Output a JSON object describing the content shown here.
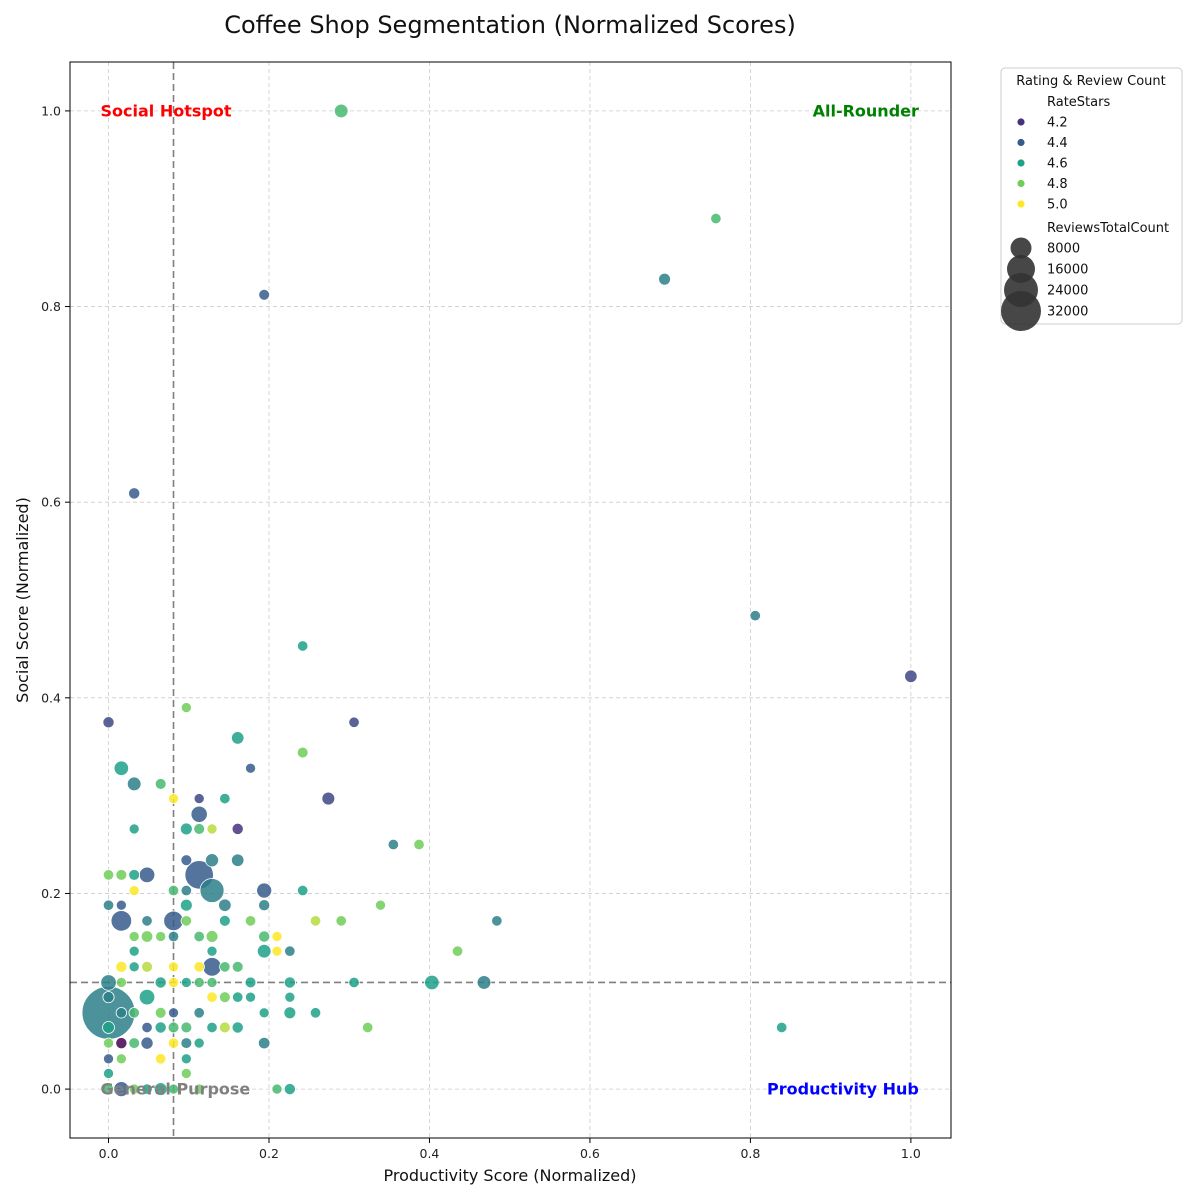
{
  "chart_data": {
    "type": "scatter",
    "title": "Coffee Shop Segmentation (Normalized Scores)",
    "xlabel": "Productivity Score (Normalized)",
    "ylabel": "Social Score (Normalized)",
    "xlim": [
      -0.048,
      1.05
    ],
    "ylim": [
      -0.05,
      1.05
    ],
    "xticks": [
      0.0,
      0.2,
      0.4,
      0.6,
      0.8,
      1.0
    ],
    "yticks": [
      0.0,
      0.2,
      0.4,
      0.6,
      0.8,
      1.0
    ],
    "xtick_labels": [
      "0.0",
      "0.2",
      "0.4",
      "0.6",
      "0.8",
      "1.0"
    ],
    "ytick_labels": [
      "0.0",
      "0.2",
      "0.4",
      "0.6",
      "0.8",
      "1.0"
    ],
    "grid": true,
    "thresholds": {
      "x": 0.081,
      "y": 0.109
    },
    "quadrant_labels": [
      {
        "text": "Social Hotspot",
        "position": "top-left",
        "color": "#ff0000"
      },
      {
        "text": "All-Rounder",
        "position": "top-right",
        "color": "#008000"
      },
      {
        "text": "General Purpose",
        "position": "bottom-left",
        "color": "#808080"
      },
      {
        "text": "Productivity Hub",
        "position": "bottom-right",
        "color": "#0000ff"
      }
    ],
    "legend": {
      "title": "Rating & Review Count",
      "position": "outside-top-right",
      "hue_title": "RateStars",
      "hue_entries": [
        {
          "label": "4.2",
          "color": "#46327e"
        },
        {
          "label": "4.4",
          "color": "#365c8d"
        },
        {
          "label": "4.6",
          "color": "#1fa187"
        },
        {
          "label": "4.8",
          "color": "#6ece58"
        },
        {
          "label": "5.0",
          "color": "#fde725"
        }
      ],
      "size_title": "ReviewsTotalCount",
      "size_entries": [
        "8000",
        "16000",
        "24000",
        "32000"
      ]
    },
    "points": [
      {
        "x": 0.29,
        "y": 1.0,
        "rating": 4.7,
        "reviews": 1500
      },
      {
        "x": 0.757,
        "y": 0.89,
        "rating": 4.7,
        "reviews": 500
      },
      {
        "x": 0.693,
        "y": 0.828,
        "rating": 4.5,
        "reviews": 900
      },
      {
        "x": 0.194,
        "y": 0.812,
        "rating": 4.4,
        "reviews": 600
      },
      {
        "x": 0.032,
        "y": 0.609,
        "rating": 4.4,
        "reviews": 700
      },
      {
        "x": 0.806,
        "y": 0.484,
        "rating": 4.5,
        "reviews": 500
      },
      {
        "x": 1.0,
        "y": 0.422,
        "rating": 4.3,
        "reviews": 1100
      },
      {
        "x": 0.242,
        "y": 0.453,
        "rating": 4.6,
        "reviews": 500
      },
      {
        "x": 0.097,
        "y": 0.39,
        "rating": 4.8,
        "reviews": 400
      },
      {
        "x": 0.0,
        "y": 0.375,
        "rating": 4.3,
        "reviews": 700
      },
      {
        "x": 0.306,
        "y": 0.375,
        "rating": 4.3,
        "reviews": 500
      },
      {
        "x": 0.161,
        "y": 0.359,
        "rating": 4.6,
        "reviews": 1100
      },
      {
        "x": 0.242,
        "y": 0.344,
        "rating": 4.8,
        "reviews": 600
      },
      {
        "x": 0.016,
        "y": 0.328,
        "rating": 4.6,
        "reviews": 1800
      },
      {
        "x": 0.177,
        "y": 0.328,
        "rating": 4.4,
        "reviews": 400
      },
      {
        "x": 0.032,
        "y": 0.312,
        "rating": 4.5,
        "reviews": 1500
      },
      {
        "x": 0.065,
        "y": 0.312,
        "rating": 4.7,
        "reviews": 600
      },
      {
        "x": 0.081,
        "y": 0.297,
        "rating": 5.0,
        "reviews": 400
      },
      {
        "x": 0.113,
        "y": 0.297,
        "rating": 4.3,
        "reviews": 400
      },
      {
        "x": 0.145,
        "y": 0.297,
        "rating": 4.6,
        "reviews": 500
      },
      {
        "x": 0.274,
        "y": 0.297,
        "rating": 4.3,
        "reviews": 1200
      },
      {
        "x": 0.113,
        "y": 0.281,
        "rating": 4.4,
        "reviews": 2500
      },
      {
        "x": 0.032,
        "y": 0.266,
        "rating": 4.6,
        "reviews": 400
      },
      {
        "x": 0.097,
        "y": 0.266,
        "rating": 4.6,
        "reviews": 900
      },
      {
        "x": 0.113,
        "y": 0.266,
        "rating": 4.7,
        "reviews": 600
      },
      {
        "x": 0.129,
        "y": 0.266,
        "rating": 4.9,
        "reviews": 400
      },
      {
        "x": 0.161,
        "y": 0.266,
        "rating": 4.2,
        "reviews": 700
      },
      {
        "x": 0.355,
        "y": 0.25,
        "rating": 4.5,
        "reviews": 500
      },
      {
        "x": 0.387,
        "y": 0.25,
        "rating": 4.8,
        "reviews": 500
      },
      {
        "x": 0.097,
        "y": 0.234,
        "rating": 4.4,
        "reviews": 600
      },
      {
        "x": 0.129,
        "y": 0.234,
        "rating": 4.5,
        "reviews": 1300
      },
      {
        "x": 0.161,
        "y": 0.234,
        "rating": 4.5,
        "reviews": 1100
      },
      {
        "x": 0.0,
        "y": 0.219,
        "rating": 4.8,
        "reviews": 500
      },
      {
        "x": 0.016,
        "y": 0.219,
        "rating": 4.8,
        "reviews": 600
      },
      {
        "x": 0.032,
        "y": 0.219,
        "rating": 4.6,
        "reviews": 600
      },
      {
        "x": 0.048,
        "y": 0.219,
        "rating": 4.4,
        "reviews": 2200
      },
      {
        "x": 0.113,
        "y": 0.219,
        "rating": 4.4,
        "reviews": 9500
      },
      {
        "x": 0.129,
        "y": 0.203,
        "rating": 4.5,
        "reviews": 6500
      },
      {
        "x": 0.081,
        "y": 0.203,
        "rating": 4.7,
        "reviews": 500
      },
      {
        "x": 0.097,
        "y": 0.203,
        "rating": 4.5,
        "reviews": 500
      },
      {
        "x": 0.194,
        "y": 0.203,
        "rating": 4.4,
        "reviews": 2000
      },
      {
        "x": 0.242,
        "y": 0.203,
        "rating": 4.6,
        "reviews": 500
      },
      {
        "x": 0.032,
        "y": 0.203,
        "rating": 5.0,
        "reviews": 400
      },
      {
        "x": 0.0,
        "y": 0.188,
        "rating": 4.5,
        "reviews": 500
      },
      {
        "x": 0.016,
        "y": 0.188,
        "rating": 4.4,
        "reviews": 400
      },
      {
        "x": 0.097,
        "y": 0.188,
        "rating": 4.6,
        "reviews": 900
      },
      {
        "x": 0.145,
        "y": 0.188,
        "rating": 4.5,
        "reviews": 1100
      },
      {
        "x": 0.194,
        "y": 0.188,
        "rating": 4.5,
        "reviews": 700
      },
      {
        "x": 0.339,
        "y": 0.188,
        "rating": 4.8,
        "reviews": 400
      },
      {
        "x": 0.016,
        "y": 0.172,
        "rating": 4.4,
        "reviews": 4500
      },
      {
        "x": 0.048,
        "y": 0.172,
        "rating": 4.5,
        "reviews": 500
      },
      {
        "x": 0.081,
        "y": 0.172,
        "rating": 4.4,
        "reviews": 4000
      },
      {
        "x": 0.097,
        "y": 0.172,
        "rating": 4.8,
        "reviews": 500
      },
      {
        "x": 0.145,
        "y": 0.172,
        "rating": 4.6,
        "reviews": 600
      },
      {
        "x": 0.177,
        "y": 0.172,
        "rating": 4.8,
        "reviews": 500
      },
      {
        "x": 0.258,
        "y": 0.172,
        "rating": 4.9,
        "reviews": 500
      },
      {
        "x": 0.29,
        "y": 0.172,
        "rating": 4.8,
        "reviews": 500
      },
      {
        "x": 0.484,
        "y": 0.172,
        "rating": 4.5,
        "reviews": 500
      },
      {
        "x": 0.032,
        "y": 0.156,
        "rating": 4.8,
        "reviews": 400
      },
      {
        "x": 0.048,
        "y": 0.156,
        "rating": 4.8,
        "reviews": 800
      },
      {
        "x": 0.065,
        "y": 0.156,
        "rating": 4.8,
        "reviews": 400
      },
      {
        "x": 0.081,
        "y": 0.156,
        "rating": 4.5,
        "reviews": 500
      },
      {
        "x": 0.113,
        "y": 0.156,
        "rating": 4.7,
        "reviews": 500
      },
      {
        "x": 0.129,
        "y": 0.156,
        "rating": 4.8,
        "reviews": 900
      },
      {
        "x": 0.194,
        "y": 0.156,
        "rating": 4.7,
        "reviews": 700
      },
      {
        "x": 0.21,
        "y": 0.156,
        "rating": 5.0,
        "reviews": 400
      },
      {
        "x": 0.032,
        "y": 0.141,
        "rating": 4.6,
        "reviews": 400
      },
      {
        "x": 0.129,
        "y": 0.141,
        "rating": 4.6,
        "reviews": 400
      },
      {
        "x": 0.194,
        "y": 0.141,
        "rating": 4.6,
        "reviews": 1500
      },
      {
        "x": 0.21,
        "y": 0.141,
        "rating": 5.0,
        "reviews": 400
      },
      {
        "x": 0.226,
        "y": 0.141,
        "rating": 4.5,
        "reviews": 500
      },
      {
        "x": 0.435,
        "y": 0.141,
        "rating": 4.8,
        "reviews": 500
      },
      {
        "x": 0.016,
        "y": 0.125,
        "rating": 5.0,
        "reviews": 700
      },
      {
        "x": 0.032,
        "y": 0.125,
        "rating": 4.6,
        "reviews": 400
      },
      {
        "x": 0.048,
        "y": 0.125,
        "rating": 4.9,
        "reviews": 600
      },
      {
        "x": 0.081,
        "y": 0.125,
        "rating": 5.0,
        "reviews": 400
      },
      {
        "x": 0.113,
        "y": 0.125,
        "rating": 5.0,
        "reviews": 500
      },
      {
        "x": 0.129,
        "y": 0.125,
        "rating": 4.4,
        "reviews": 3500
      },
      {
        "x": 0.145,
        "y": 0.125,
        "rating": 4.7,
        "reviews": 500
      },
      {
        "x": 0.161,
        "y": 0.125,
        "rating": 4.7,
        "reviews": 600
      },
      {
        "x": 0.0,
        "y": 0.109,
        "rating": 4.5,
        "reviews": 2200
      },
      {
        "x": 0.016,
        "y": 0.109,
        "rating": 4.8,
        "reviews": 400
      },
      {
        "x": 0.065,
        "y": 0.109,
        "rating": 4.6,
        "reviews": 700
      },
      {
        "x": 0.081,
        "y": 0.109,
        "rating": 5.0,
        "reviews": 400
      },
      {
        "x": 0.097,
        "y": 0.109,
        "rating": 4.6,
        "reviews": 400
      },
      {
        "x": 0.113,
        "y": 0.109,
        "rating": 4.7,
        "reviews": 400
      },
      {
        "x": 0.129,
        "y": 0.109,
        "rating": 4.7,
        "reviews": 400
      },
      {
        "x": 0.177,
        "y": 0.109,
        "rating": 4.6,
        "reviews": 600
      },
      {
        "x": 0.226,
        "y": 0.109,
        "rating": 4.6,
        "reviews": 700
      },
      {
        "x": 0.306,
        "y": 0.109,
        "rating": 4.6,
        "reviews": 500
      },
      {
        "x": 0.403,
        "y": 0.109,
        "rating": 4.6,
        "reviews": 1800
      },
      {
        "x": 0.468,
        "y": 0.109,
        "rating": 4.5,
        "reviews": 1500
      },
      {
        "x": 0.0,
        "y": 0.094,
        "rating": 4.5,
        "reviews": 700
      },
      {
        "x": 0.048,
        "y": 0.094,
        "rating": 4.6,
        "reviews": 2200
      },
      {
        "x": 0.129,
        "y": 0.094,
        "rating": 5.0,
        "reviews": 500
      },
      {
        "x": 0.145,
        "y": 0.094,
        "rating": 4.8,
        "reviews": 600
      },
      {
        "x": 0.161,
        "y": 0.094,
        "rating": 4.6,
        "reviews": 500
      },
      {
        "x": 0.177,
        "y": 0.094,
        "rating": 4.6,
        "reviews": 400
      },
      {
        "x": 0.226,
        "y": 0.094,
        "rating": 4.6,
        "reviews": 400
      },
      {
        "x": 0.0,
        "y": 0.078,
        "rating": 4.5,
        "reviews": 35000
      },
      {
        "x": 0.016,
        "y": 0.078,
        "rating": 4.5,
        "reviews": 500
      },
      {
        "x": 0.032,
        "y": 0.078,
        "rating": 4.7,
        "reviews": 500
      },
      {
        "x": 0.065,
        "y": 0.078,
        "rating": 4.8,
        "reviews": 600
      },
      {
        "x": 0.081,
        "y": 0.078,
        "rating": 4.4,
        "reviews": 400
      },
      {
        "x": 0.113,
        "y": 0.078,
        "rating": 4.5,
        "reviews": 500
      },
      {
        "x": 0.194,
        "y": 0.078,
        "rating": 4.6,
        "reviews": 400
      },
      {
        "x": 0.226,
        "y": 0.078,
        "rating": 4.6,
        "reviews": 900
      },
      {
        "x": 0.258,
        "y": 0.078,
        "rating": 4.6,
        "reviews": 500
      },
      {
        "x": 0.0,
        "y": 0.063,
        "rating": 4.6,
        "reviews": 900
      },
      {
        "x": 0.048,
        "y": 0.063,
        "rating": 4.4,
        "reviews": 500
      },
      {
        "x": 0.065,
        "y": 0.063,
        "rating": 4.6,
        "reviews": 700
      },
      {
        "x": 0.081,
        "y": 0.063,
        "rating": 4.7,
        "reviews": 600
      },
      {
        "x": 0.097,
        "y": 0.063,
        "rating": 4.7,
        "reviews": 600
      },
      {
        "x": 0.129,
        "y": 0.063,
        "rating": 4.6,
        "reviews": 500
      },
      {
        "x": 0.145,
        "y": 0.063,
        "rating": 4.9,
        "reviews": 600
      },
      {
        "x": 0.161,
        "y": 0.063,
        "rating": 4.6,
        "reviews": 700
      },
      {
        "x": 0.323,
        "y": 0.063,
        "rating": 4.8,
        "reviews": 500
      },
      {
        "x": 0.839,
        "y": 0.063,
        "rating": 4.6,
        "reviews": 500
      },
      {
        "x": 0.0,
        "y": 0.047,
        "rating": 4.8,
        "reviews": 400
      },
      {
        "x": 0.016,
        "y": 0.047,
        "rating": 4.1,
        "reviews": 700
      },
      {
        "x": 0.032,
        "y": 0.047,
        "rating": 4.7,
        "reviews": 600
      },
      {
        "x": 0.048,
        "y": 0.047,
        "rating": 4.4,
        "reviews": 1000
      },
      {
        "x": 0.081,
        "y": 0.047,
        "rating": 5.0,
        "reviews": 500
      },
      {
        "x": 0.097,
        "y": 0.047,
        "rating": 4.5,
        "reviews": 600
      },
      {
        "x": 0.113,
        "y": 0.047,
        "rating": 4.6,
        "reviews": 400
      },
      {
        "x": 0.194,
        "y": 0.047,
        "rating": 4.5,
        "reviews": 800
      },
      {
        "x": 0.0,
        "y": 0.031,
        "rating": 4.4,
        "reviews": 400
      },
      {
        "x": 0.016,
        "y": 0.031,
        "rating": 4.8,
        "reviews": 400
      },
      {
        "x": 0.065,
        "y": 0.031,
        "rating": 5.0,
        "reviews": 500
      },
      {
        "x": 0.097,
        "y": 0.031,
        "rating": 4.6,
        "reviews": 400
      },
      {
        "x": 0.0,
        "y": 0.016,
        "rating": 4.6,
        "reviews": 400
      },
      {
        "x": 0.097,
        "y": 0.016,
        "rating": 4.8,
        "reviews": 400
      },
      {
        "x": 0.0,
        "y": 0.0,
        "rating": 4.7,
        "reviews": 400
      },
      {
        "x": 0.016,
        "y": 0.0,
        "rating": 4.4,
        "reviews": 2000
      },
      {
        "x": 0.032,
        "y": 0.0,
        "rating": 4.8,
        "reviews": 400
      },
      {
        "x": 0.048,
        "y": 0.0,
        "rating": 4.6,
        "reviews": 500
      },
      {
        "x": 0.065,
        "y": 0.0,
        "rating": 4.6,
        "reviews": 1200
      },
      {
        "x": 0.081,
        "y": 0.0,
        "rating": 4.7,
        "reviews": 400
      },
      {
        "x": 0.113,
        "y": 0.0,
        "rating": 4.8,
        "reviews": 400
      },
      {
        "x": 0.21,
        "y": 0.0,
        "rating": 4.7,
        "reviews": 400
      },
      {
        "x": 0.226,
        "y": 0.0,
        "rating": 4.6,
        "reviews": 700
      }
    ]
  }
}
